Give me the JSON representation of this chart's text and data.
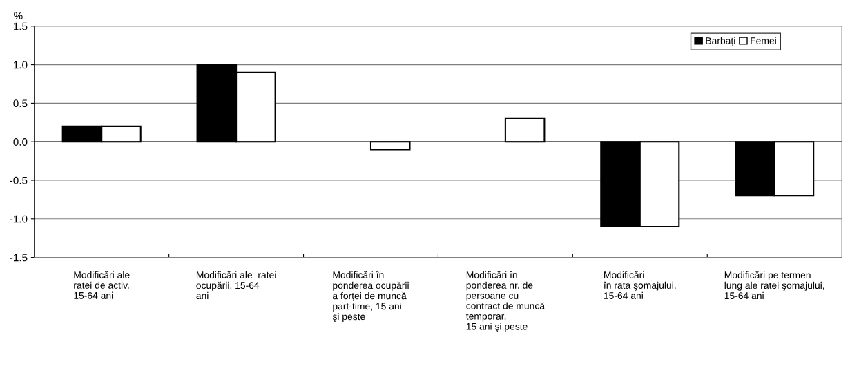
{
  "chart_data": {
    "type": "bar",
    "ylabel": "%",
    "categories": [
      "Modificări ale\nratei de activ.\n15-64 ani",
      "Modificări ale  ratei\nocupării, 15-64\nani",
      "Modificări în\nponderea ocupării\na forței de muncă\npart-time, 15 ani\nşi peste",
      "Modificări în\nponderea nr. de\npersoane cu\ncontract de muncă\ntemporar,\n15 ani şi peste",
      "Modificări\nîn rata şomajului,\n15-64 ani",
      "Modificări pe termen\nlung ale ratei şomajului,\n15-64 ani"
    ],
    "series": [
      {
        "name": "Barbați",
        "color": "#000000",
        "values": [
          0.2,
          1.0,
          0.0,
          0.0,
          -1.1,
          -0.7
        ]
      },
      {
        "name": "Femei",
        "color": "#ffffff",
        "values": [
          0.2,
          0.9,
          -0.1,
          0.3,
          -1.1,
          -0.7
        ]
      }
    ],
    "ylim": [
      -1.5,
      1.5
    ],
    "yticks": [
      {
        "value": -1.5,
        "label": "-1.5"
      },
      {
        "value": -1.0,
        "label": "-1.0"
      },
      {
        "value": -0.5,
        "label": "-0.5"
      },
      {
        "value": 0,
        "label": "0.0"
      },
      {
        "value": 0.5,
        "label": "0.5"
      },
      {
        "value": 1.0,
        "label": "1.0"
      },
      {
        "value": 1.5,
        "label": "1.5"
      }
    ],
    "grid": "y",
    "legend": "top right"
  }
}
